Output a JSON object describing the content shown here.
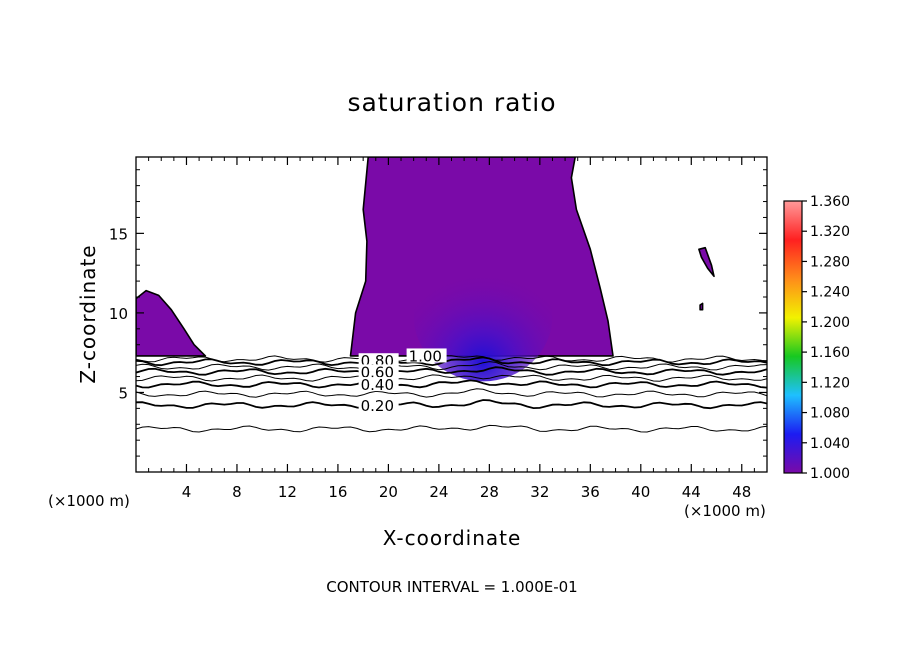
{
  "chart_data": {
    "type": "contour",
    "title": "saturation ratio",
    "xlabel": "X-coordinate",
    "ylabel": "Z-coordinate",
    "x_unit": "(×1000 m)",
    "z_unit": "(×1000 m)",
    "xlim": [
      0,
      50
    ],
    "ylim": [
      0,
      19.8
    ],
    "x_ticks": [
      4,
      8,
      12,
      16,
      20,
      24,
      28,
      32,
      36,
      40,
      44,
      48
    ],
    "y_ticks": [
      5,
      10,
      15
    ],
    "x_tick_labels": [
      "4",
      "8",
      "12",
      "16",
      "20",
      "24",
      "28",
      "32",
      "36",
      "40",
      "44",
      "48"
    ],
    "y_tick_labels": [
      "5",
      "10",
      "15"
    ],
    "contour_interval_label": "CONTOUR INTERVAL = 1.000E-01",
    "contour_labels": [
      {
        "text": "0.80",
        "x": 17.8,
        "z": 6.9
      },
      {
        "text": "1.00",
        "x": 21.6,
        "z": 7.2
      },
      {
        "text": "0.60",
        "x": 17.8,
        "z": 6.2
      },
      {
        "text": "0.40",
        "x": 17.8,
        "z": 5.4
      },
      {
        "text": "0.20",
        "x": 17.8,
        "z": 4.1
      }
    ],
    "contour_lines": [
      {
        "level": 0.1,
        "z": 2.7
      },
      {
        "level": 0.2,
        "z": 4.2
      },
      {
        "level": 0.3,
        "z": 4.9
      },
      {
        "level": 0.4,
        "z": 5.5
      },
      {
        "level": 0.5,
        "z": 5.9
      },
      {
        "level": 0.6,
        "z": 6.3
      },
      {
        "level": 0.7,
        "z": 6.6
      },
      {
        "level": 0.8,
        "z": 6.9
      },
      {
        "level": 0.9,
        "z": 7.1
      }
    ],
    "supersaturated_regions": [
      {
        "level": 1.0,
        "polygon": [
          [
            0,
            7.3
          ],
          [
            0,
            10.9
          ],
          [
            0.8,
            11.4
          ],
          [
            1.8,
            11.1
          ],
          [
            2.8,
            10.2
          ],
          [
            3.8,
            9.0
          ],
          [
            4.6,
            8.0
          ],
          [
            5.5,
            7.3
          ]
        ]
      },
      {
        "level": 1.0,
        "polygon": [
          [
            17.0,
            7.3
          ],
          [
            17.4,
            10.0
          ],
          [
            18.2,
            12.0
          ],
          [
            18.3,
            14.5
          ],
          [
            18.0,
            16.5
          ],
          [
            18.4,
            19.8
          ],
          [
            34.8,
            19.8
          ],
          [
            34.5,
            18.5
          ],
          [
            34.9,
            16.5
          ],
          [
            36.0,
            14.0
          ],
          [
            36.8,
            11.5
          ],
          [
            37.4,
            9.5
          ],
          [
            37.8,
            7.3
          ]
        ]
      },
      {
        "level": 1.0,
        "polygon": [
          [
            44.6,
            14.0
          ],
          [
            45.1,
            14.1
          ],
          [
            45.6,
            13.0
          ],
          [
            45.8,
            12.3
          ],
          [
            45.3,
            12.8
          ],
          [
            44.8,
            13.5
          ]
        ]
      },
      {
        "level": 1.0,
        "polygon": [
          [
            44.7,
            10.5
          ],
          [
            44.9,
            10.6
          ],
          [
            44.9,
            10.2
          ],
          [
            44.7,
            10.2
          ]
        ]
      }
    ],
    "colorbar": {
      "min": 1.0,
      "max": 1.36,
      "tick_labels": [
        "1.360",
        "1.320",
        "1.280",
        "1.240",
        "1.200",
        "1.160",
        "1.120",
        "1.080",
        "1.040",
        "1.000"
      ],
      "colors": [
        "#7a0aa8",
        "#1c1cf2",
        "#1ec0ff",
        "#17c820",
        "#f2f200",
        "#ff8c1a",
        "#ff2020",
        "#ff9a9a"
      ]
    }
  }
}
